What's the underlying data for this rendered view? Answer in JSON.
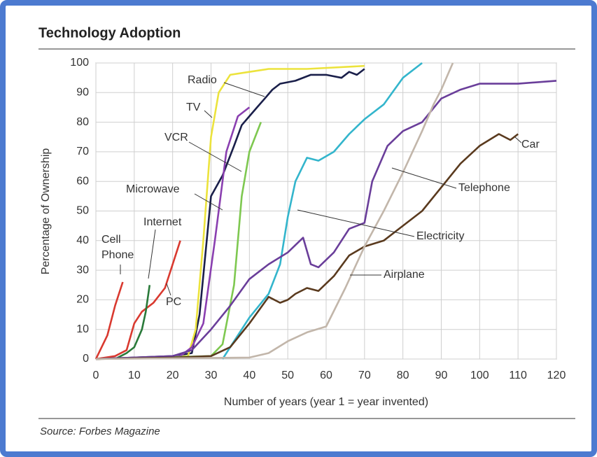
{
  "chart_data": {
    "type": "line",
    "title": "Technology Adoption",
    "x_label": "Number of years (year 1 = year invented)",
    "y_label": "Percentage of Ownership",
    "source": "Source: Forbes Magazine",
    "xlim": [
      0,
      120
    ],
    "xticks": [
      0,
      10,
      20,
      30,
      40,
      50,
      60,
      70,
      80,
      90,
      100,
      110,
      120
    ],
    "ylim": [
      0,
      100
    ],
    "yticks": [
      0,
      10,
      20,
      30,
      40,
      50,
      60,
      70,
      80,
      90,
      100
    ],
    "grid": true,
    "series": [
      {
        "name": "Cell Phone",
        "color": "#d9392f",
        "x": [
          0,
          3,
          5,
          7
        ],
        "values": [
          0,
          8,
          18,
          26
        ]
      },
      {
        "name": "PC",
        "color": "#d9392f",
        "x": [
          0,
          5,
          8,
          10,
          12,
          15,
          18,
          20,
          22
        ],
        "values": [
          0,
          1,
          3,
          12,
          16,
          19,
          24,
          32,
          40
        ]
      },
      {
        "name": "Internet",
        "color": "#2a7a3a",
        "x": [
          5,
          8,
          10,
          12,
          13,
          14
        ],
        "values": [
          0,
          2,
          4,
          10,
          16,
          25
        ]
      },
      {
        "name": "Radio",
        "color": "#1a1f4a",
        "x": [
          0,
          20,
          25,
          27,
          30,
          33,
          36,
          38,
          40,
          42,
          44,
          46,
          48,
          52,
          56,
          60,
          64,
          66,
          68,
          70
        ],
        "values": [
          0,
          1,
          2,
          15,
          55,
          62,
          72,
          79,
          82,
          85,
          88,
          91,
          93,
          94,
          96,
          96,
          95,
          97,
          96,
          98
        ]
      },
      {
        "name": "TV",
        "color": "#ece33c",
        "x": [
          0,
          24,
          26,
          28,
          30,
          32,
          35,
          40,
          45,
          55,
          70
        ],
        "values": [
          0,
          1,
          10,
          40,
          75,
          90,
          96,
          97,
          98,
          98,
          99
        ]
      },
      {
        "name": "VCR",
        "color": "#8a3fb0",
        "x": [
          0,
          22,
          25,
          28,
          31,
          34,
          37,
          40
        ],
        "values": [
          0,
          1,
          4,
          12,
          40,
          70,
          82,
          85
        ]
      },
      {
        "name": "Microwave",
        "color": "#7ec850",
        "x": [
          0,
          30,
          33,
          36,
          38,
          40,
          43
        ],
        "values": [
          0,
          1,
          5,
          25,
          55,
          70,
          80
        ]
      },
      {
        "name": "Electricity",
        "color": "#33b5cc",
        "x": [
          33,
          35,
          40,
          45,
          48,
          50,
          52,
          55,
          58,
          62,
          66,
          70,
          75,
          80,
          85
        ],
        "values": [
          0,
          4,
          14,
          22,
          32,
          48,
          60,
          68,
          67,
          70,
          76,
          81,
          86,
          95,
          100
        ]
      },
      {
        "name": "Telephone",
        "color": "#6a3e9a",
        "x": [
          0,
          20,
          25,
          30,
          35,
          40,
          45,
          50,
          54,
          56,
          58,
          62,
          66,
          70,
          72,
          76,
          80,
          85,
          90,
          95,
          100,
          110,
          120
        ],
        "values": [
          0,
          1,
          3,
          10,
          18,
          27,
          32,
          36,
          41,
          32,
          31,
          36,
          44,
          46,
          60,
          72,
          77,
          80,
          88,
          91,
          93,
          93,
          94
        ]
      },
      {
        "name": "Car",
        "color": "#5a3a1e",
        "x": [
          0,
          20,
          30,
          35,
          40,
          45,
          48,
          50,
          52,
          55,
          58,
          62,
          66,
          70,
          75,
          80,
          85,
          90,
          95,
          100,
          105,
          108,
          110
        ],
        "values": [
          0,
          0.5,
          1,
          4,
          12,
          21,
          19,
          20,
          22,
          24,
          23,
          28,
          35,
          38,
          40,
          45,
          50,
          58,
          66,
          72,
          76,
          74,
          76
        ]
      },
      {
        "name": "Airplane",
        "color": "#c2b6aa",
        "x": [
          0,
          40,
          45,
          50,
          55,
          60,
          65,
          70,
          75,
          80,
          85,
          88,
          90,
          92,
          93
        ],
        "values": [
          0,
          0.5,
          2,
          6,
          9,
          11,
          24,
          38,
          50,
          63,
          77,
          86,
          91,
          97,
          100
        ]
      }
    ]
  }
}
